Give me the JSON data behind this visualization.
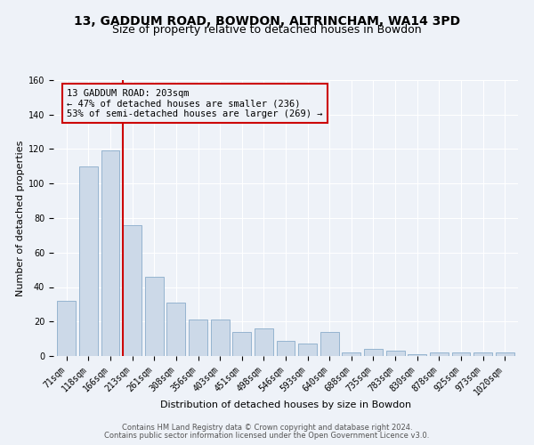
{
  "title1": "13, GADDUM ROAD, BOWDON, ALTRINCHAM, WA14 3PD",
  "title2": "Size of property relative to detached houses in Bowdon",
  "xlabel": "Distribution of detached houses by size in Bowdon",
  "ylabel": "Number of detached properties",
  "categories": [
    "71sqm",
    "118sqm",
    "166sqm",
    "213sqm",
    "261sqm",
    "308sqm",
    "356sqm",
    "403sqm",
    "451sqm",
    "498sqm",
    "546sqm",
    "593sqm",
    "640sqm",
    "688sqm",
    "735sqm",
    "783sqm",
    "830sqm",
    "878sqm",
    "925sqm",
    "973sqm",
    "1020sqm"
  ],
  "values": [
    32,
    110,
    119,
    76,
    46,
    31,
    21,
    21,
    14,
    16,
    9,
    7,
    14,
    2,
    4,
    3,
    1,
    2,
    2,
    2,
    2
  ],
  "bar_color": "#ccd9e8",
  "bar_edge_color": "#8aacca",
  "marker_index": 3,
  "marker_label": "13 GADDUM ROAD: 203sqm",
  "annotation_line1": "← 47% of detached houses are smaller (236)",
  "annotation_line2": "53% of semi-detached houses are larger (269) →",
  "marker_color": "#cc0000",
  "ylim": [
    0,
    160
  ],
  "yticks": [
    0,
    20,
    40,
    60,
    80,
    100,
    120,
    140,
    160
  ],
  "footer1": "Contains HM Land Registry data © Crown copyright and database right 2024.",
  "footer2": "Contains public sector information licensed under the Open Government Licence v3.0.",
  "bg_color": "#eef2f8",
  "grid_color": "#ffffff",
  "title_fontsize": 10,
  "subtitle_fontsize": 9,
  "axis_label_fontsize": 8,
  "tick_fontsize": 7,
  "footer_fontsize": 6,
  "annot_fontsize": 7.5
}
